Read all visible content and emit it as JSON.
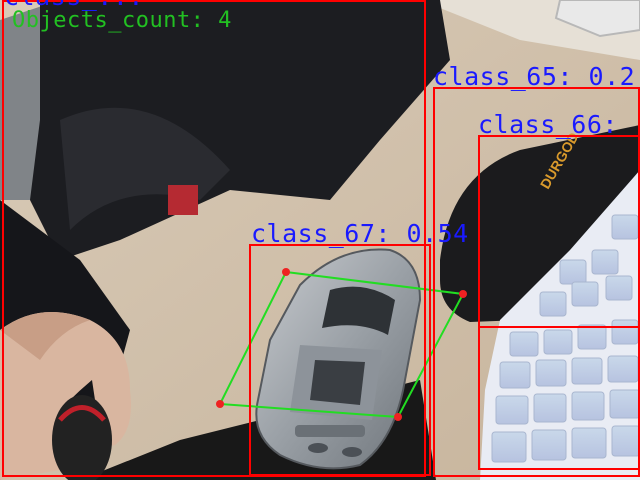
{
  "overlay": {
    "objects_count_text": "Objects_count: 4",
    "box_color": "#ff0000",
    "label_color": "#1a1aff",
    "count_color": "#22c022",
    "polygon_color": "#22dd22",
    "vertex_color": "#ee2222"
  },
  "detections": [
    {
      "id": "top-left",
      "label": "class_..."
    },
    {
      "id": "class_65",
      "label": "class_65: 0.2"
    },
    {
      "id": "class_66",
      "label": "class_66: "
    },
    {
      "id": "class_67",
      "label": "class_67: 0.54"
    }
  ]
}
